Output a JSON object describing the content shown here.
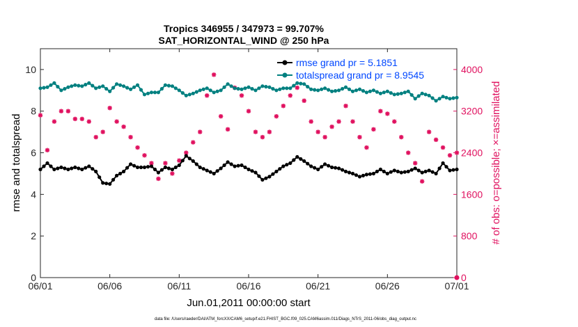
{
  "chart_data": {
    "type": "line",
    "title_line1": "Tropics 346955 / 347973 = 99.707%",
    "title_line2": "SAT_HORIZONTAL_WIND @ 250 hPa",
    "xlabel": "Jun.01,2011 00:00:00 start",
    "ylabel_left": "rmse and totalspread",
    "ylabel_right": "# of obs: o=possible; ×=assimilated",
    "footnote": "data file: /Users/raeder/DAI/ATM_forcXX/CAM6_setup/f.e21.FHIST_BGC.f09_025.CAM6assim.011/Diags_NTrS_2011-06/obs_diag_output.nc",
    "x_ticks": [
      0,
      5,
      10,
      15,
      20,
      25,
      30
    ],
    "x_tick_labels": [
      "06/01",
      "06/06",
      "06/11",
      "06/16",
      "06/21",
      "06/26",
      "07/01"
    ],
    "xlim": [
      0,
      30
    ],
    "ylim_left": [
      0,
      11
    ],
    "y_ticks_left": [
      0,
      2,
      4,
      6,
      8,
      10
    ],
    "y_tick_labels_left": [
      "0",
      "2",
      "4",
      "6",
      "8",
      "10"
    ],
    "ylim_right": [
      0,
      4400
    ],
    "y_ticks_right": [
      0,
      800,
      1600,
      2400,
      3200,
      4000
    ],
    "y_tick_labels_right": [
      "0",
      "800",
      "1600",
      "2400",
      "3200",
      "4000"
    ],
    "colors": {
      "rmse": "#000000",
      "totalspread": "#008080",
      "obs": "#e0115f",
      "legend_text": "#0047ff"
    },
    "series": [
      {
        "name": "rmse",
        "legend": "rmse grand pr = 5.1851",
        "knots": [
          [
            0,
            5.2
          ],
          [
            0.5,
            5.5
          ],
          [
            1,
            5.2
          ],
          [
            1.5,
            5.3
          ],
          [
            2,
            5.2
          ],
          [
            2.5,
            5.3
          ],
          [
            3,
            5.2
          ],
          [
            3.5,
            5.35
          ],
          [
            4,
            5.1
          ],
          [
            4.5,
            4.55
          ],
          [
            5,
            4.5
          ],
          [
            5.5,
            4.9
          ],
          [
            6,
            5.1
          ],
          [
            6.5,
            5.45
          ],
          [
            7,
            5.3
          ],
          [
            7.5,
            5.3
          ],
          [
            8,
            5.35
          ],
          [
            8.5,
            5.05
          ],
          [
            9,
            5.3
          ],
          [
            9.5,
            5.2
          ],
          [
            10,
            5.4
          ],
          [
            10.5,
            5.85
          ],
          [
            11,
            5.6
          ],
          [
            11.5,
            5.3
          ],
          [
            12,
            5.15
          ],
          [
            12.5,
            5.0
          ],
          [
            13,
            5.25
          ],
          [
            13.5,
            5.55
          ],
          [
            14,
            5.35
          ],
          [
            14.5,
            5.4
          ],
          [
            15,
            5.2
          ],
          [
            15.5,
            5.05
          ],
          [
            16,
            4.7
          ],
          [
            16.5,
            4.85
          ],
          [
            17,
            5.1
          ],
          [
            17.5,
            5.35
          ],
          [
            18,
            5.5
          ],
          [
            18.5,
            5.8
          ],
          [
            19,
            5.6
          ],
          [
            19.5,
            5.35
          ],
          [
            20,
            5.2
          ],
          [
            20.5,
            5.45
          ],
          [
            21,
            5.3
          ],
          [
            21.5,
            5.25
          ],
          [
            22,
            5.1
          ],
          [
            22.5,
            5.0
          ],
          [
            23,
            4.85
          ],
          [
            23.5,
            4.95
          ],
          [
            24,
            5.0
          ],
          [
            24.5,
            5.2
          ],
          [
            25,
            5.0
          ],
          [
            25.5,
            5.15
          ],
          [
            26,
            5.05
          ],
          [
            26.5,
            5.1
          ],
          [
            27,
            5.25
          ],
          [
            27.5,
            5.05
          ],
          [
            28,
            5.15
          ],
          [
            28.5,
            5.0
          ],
          [
            29,
            5.5
          ],
          [
            29.5,
            5.15
          ],
          [
            30,
            5.2
          ]
        ]
      },
      {
        "name": "totalspread",
        "legend": "totalspread grand pr = 8.9545",
        "knots": [
          [
            0,
            9.1
          ],
          [
            0.5,
            9.15
          ],
          [
            1,
            9.35
          ],
          [
            1.5,
            9.0
          ],
          [
            2,
            9.15
          ],
          [
            2.5,
            9.25
          ],
          [
            3,
            9.2
          ],
          [
            3.5,
            9.35
          ],
          [
            4,
            9.1
          ],
          [
            4.5,
            9.2
          ],
          [
            5,
            8.95
          ],
          [
            5.5,
            9.3
          ],
          [
            6,
            9.2
          ],
          [
            6.5,
            9.05
          ],
          [
            7,
            9.25
          ],
          [
            7.5,
            8.8
          ],
          [
            8,
            8.9
          ],
          [
            8.5,
            8.9
          ],
          [
            9,
            9.25
          ],
          [
            9.5,
            9.2
          ],
          [
            10,
            9.0
          ],
          [
            10.5,
            8.75
          ],
          [
            11,
            8.85
          ],
          [
            11.5,
            9.0
          ],
          [
            12,
            9.1
          ],
          [
            12.5,
            8.9
          ],
          [
            13,
            9.0
          ],
          [
            13.5,
            9.3
          ],
          [
            14,
            9.1
          ],
          [
            14.5,
            9.05
          ],
          [
            15,
            9.15
          ],
          [
            15.5,
            9.0
          ],
          [
            16,
            9.2
          ],
          [
            16.5,
            9.15
          ],
          [
            17,
            9.0
          ],
          [
            17.5,
            9.1
          ],
          [
            18,
            9.1
          ],
          [
            18.5,
            9.35
          ],
          [
            19,
            9.3
          ],
          [
            19.5,
            9.05
          ],
          [
            20,
            9.0
          ],
          [
            20.5,
            9.1
          ],
          [
            21,
            8.95
          ],
          [
            21.5,
            9.0
          ],
          [
            22,
            9.15
          ],
          [
            22.5,
            8.95
          ],
          [
            23,
            9.05
          ],
          [
            23.5,
            8.9
          ],
          [
            24,
            9.0
          ],
          [
            24.5,
            8.85
          ],
          [
            25,
            8.95
          ],
          [
            25.5,
            8.8
          ],
          [
            26,
            8.85
          ],
          [
            26.5,
            8.95
          ],
          [
            27,
            8.6
          ],
          [
            27.5,
            8.85
          ],
          [
            28,
            8.75
          ],
          [
            28.5,
            8.5
          ],
          [
            29,
            8.7
          ],
          [
            29.5,
            8.6
          ],
          [
            30,
            8.65
          ]
        ]
      },
      {
        "name": "obs_assimilated",
        "axis": "right",
        "knots": [
          [
            0,
            3120
          ],
          [
            0.25,
            3050
          ],
          [
            0.5,
            2450
          ],
          [
            1,
            3000
          ],
          [
            1.5,
            3200
          ],
          [
            2,
            3200
          ],
          [
            2.5,
            3050
          ],
          [
            3,
            3050
          ],
          [
            3.5,
            3000
          ],
          [
            4,
            2700
          ],
          [
            4.5,
            2800
          ],
          [
            5,
            3260
          ],
          [
            5.5,
            3000
          ],
          [
            6,
            2900
          ],
          [
            6.5,
            2700
          ],
          [
            7,
            2500
          ],
          [
            7.5,
            2350
          ],
          [
            8,
            2200
          ],
          [
            8.5,
            1900
          ],
          [
            9,
            2200
          ],
          [
            9.5,
            2000
          ],
          [
            10,
            2250
          ],
          [
            10.5,
            2400
          ],
          [
            11,
            2600
          ],
          [
            11.5,
            2800
          ],
          [
            12,
            3500
          ],
          [
            12.5,
            3900
          ],
          [
            13,
            3100
          ],
          [
            13.5,
            2850
          ],
          [
            14,
            3650
          ],
          [
            14.5,
            3500
          ],
          [
            15,
            3200
          ],
          [
            15.5,
            2800
          ],
          [
            16,
            2700
          ],
          [
            16.5,
            2800
          ],
          [
            17,
            3100
          ],
          [
            17.5,
            3300
          ],
          [
            18,
            3500
          ],
          [
            18.5,
            3650
          ],
          [
            19,
            3400
          ],
          [
            19.5,
            3000
          ],
          [
            20,
            2800
          ],
          [
            20.5,
            2700
          ],
          [
            21,
            2900
          ],
          [
            21.5,
            3000
          ],
          [
            22,
            3300
          ],
          [
            22.5,
            3000
          ],
          [
            23,
            2700
          ],
          [
            23.5,
            2500
          ],
          [
            24,
            2850
          ],
          [
            24.5,
            3200
          ],
          [
            25,
            3150
          ],
          [
            25.5,
            3000
          ],
          [
            26,
            2700
          ],
          [
            26.5,
            2400
          ],
          [
            27,
            2200
          ],
          [
            27.5,
            1850
          ],
          [
            28,
            2800
          ],
          [
            28.5,
            2650
          ],
          [
            29,
            2500
          ],
          [
            29.5,
            2350
          ],
          [
            30,
            2400
          ]
        ]
      },
      {
        "name": "obs_possible_end",
        "axis": "right",
        "knots": [
          [
            30,
            0
          ]
        ]
      }
    ]
  }
}
